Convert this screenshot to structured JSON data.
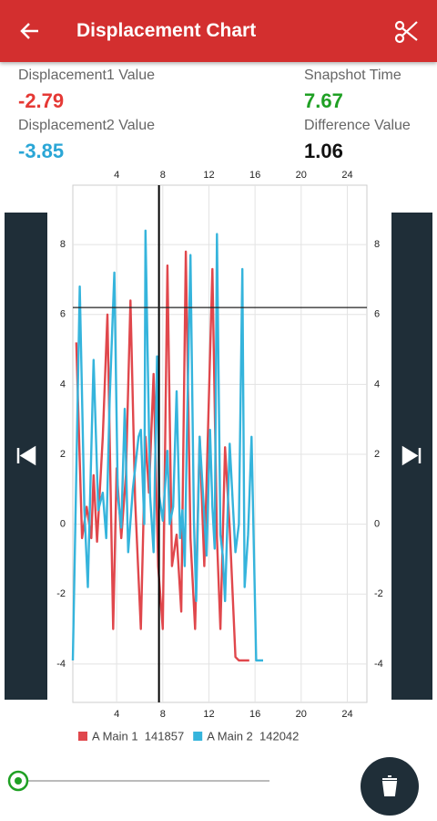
{
  "header": {
    "title": "Displacement Chart"
  },
  "readouts": [
    {
      "label": "Displacement1 Value",
      "value": "-2.79",
      "color": "#e53935"
    },
    {
      "label": "Displacement2 Value",
      "value": "-3.85",
      "color": "#2aa6d6"
    },
    {
      "label": "Snapshot Time",
      "value": "7.67",
      "color": "#1fa024"
    },
    {
      "label": "Difference Value",
      "value": "1.06",
      "color": "#111111"
    }
  ],
  "chart_data": {
    "type": "line",
    "xlim": [
      0.2,
      25.7
    ],
    "xticks": [
      4,
      8,
      12,
      16,
      20,
      24
    ],
    "ylim": [
      -5.1,
      9.7
    ],
    "yticks": [
      -4,
      -2,
      0,
      2,
      4,
      6,
      8
    ],
    "grid": true,
    "cursor_x": 7.67,
    "cursor_y": 6.2,
    "series": [
      {
        "name": "A Main 1  141857",
        "color": "#e0474c",
        "x": [
          0.5,
          1.0,
          1.4,
          1.8,
          2.0,
          2.3,
          2.8,
          3.2,
          3.7,
          4.0,
          4.4,
          4.8,
          5.2,
          5.6,
          6.1,
          6.5,
          6.8,
          7.2,
          7.6,
          8.0,
          8.4,
          8.8,
          9.2,
          9.6,
          10.0,
          10.4,
          10.8,
          11.2,
          11.6,
          12.3,
          12.7,
          13.0,
          13.4,
          13.8,
          14.3,
          14.6,
          15.5
        ],
        "values": [
          5.2,
          -0.4,
          0.5,
          -0.4,
          1.4,
          -0.5,
          2.5,
          6.0,
          -3.0,
          1.6,
          -0.4,
          1.4,
          6.4,
          0.7,
          -3.0,
          2.5,
          0.9,
          4.3,
          -1.2,
          -3.0,
          7.4,
          -1.2,
          -0.3,
          -2.5,
          7.8,
          -0.4,
          -3.0,
          2.5,
          -1.2,
          7.3,
          -0.4,
          -3.0,
          2.2,
          -0.1,
          -3.8,
          -3.9,
          -3.9
        ]
      },
      {
        "name": "A Main 2  142042",
        "color": "#35b4dc",
        "x": [
          0.2,
          0.8,
          1.2,
          1.5,
          2.0,
          2.4,
          2.8,
          3.1,
          3.4,
          3.8,
          4.1,
          4.4,
          4.7,
          5.0,
          5.4,
          5.9,
          6.1,
          6.4,
          6.5,
          6.9,
          7.2,
          7.5,
          7.7,
          8.0,
          8.4,
          8.6,
          8.9,
          9.2,
          9.5,
          9.7,
          9.9,
          10.1,
          10.4,
          10.7,
          10.9,
          11.2,
          11.5,
          11.8,
          12.1,
          12.3,
          12.5,
          12.7,
          13.0,
          13.2,
          13.4,
          13.8,
          14.1,
          14.3,
          14.6,
          14.9,
          15.1,
          15.4,
          15.7,
          16.1,
          16.7
        ],
        "values": [
          -3.9,
          6.8,
          0.4,
          -1.8,
          4.7,
          0.4,
          0.9,
          -0.4,
          3.6,
          7.2,
          0.8,
          -0.1,
          3.3,
          -0.8,
          1.0,
          2.5,
          2.7,
          0,
          8.4,
          0.8,
          -0.8,
          4.8,
          0.8,
          0.1,
          2.1,
          0,
          0.5,
          3.8,
          -0.4,
          0.4,
          -1.2,
          2.7,
          7.7,
          0.1,
          -2.2,
          2.5,
          0.8,
          -0.9,
          2.7,
          0.5,
          -0.7,
          8.3,
          -0.3,
          -0.9,
          -2.2,
          2.3,
          0.4,
          -0.8,
          0,
          7.3,
          -1.8,
          -0.3,
          2.5,
          -3.9,
          -3.9
        ]
      }
    ]
  }
}
